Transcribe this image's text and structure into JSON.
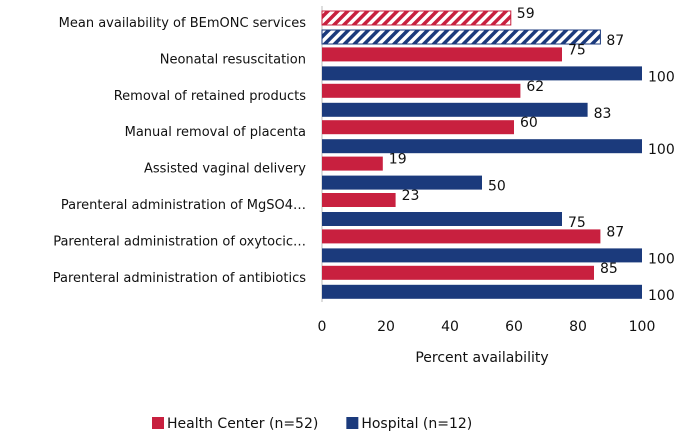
{
  "chart_data": {
    "type": "bar",
    "orientation": "horizontal",
    "categories": [
      "Mean availability of BEmONC services",
      "Neonatal resuscitation ",
      "Removal of retained products",
      "Manual removal of placenta",
      "Assisted vaginal delivery",
      "Parenteral administration of MgSO4…",
      "Parenteral administration of oxytocic…",
      "Parenteral administration of antibiotics"
    ],
    "series": [
      {
        "name": "Health Center (n=52)",
        "color": "#c8203f",
        "values": [
          59,
          75,
          62,
          60,
          19,
          23,
          87,
          85
        ]
      },
      {
        "name": "Hospital (n=12)",
        "color": "#1b3a7c",
        "values": [
          87,
          100,
          83,
          100,
          50,
          75,
          100,
          100
        ]
      }
    ],
    "hatched_categories": [
      0
    ],
    "xlabel": "Percent availability",
    "xlim": [
      0,
      100
    ],
    "xticks": [
      0,
      20,
      40,
      60,
      80,
      100
    ],
    "grid": false,
    "legend": "bottom"
  }
}
